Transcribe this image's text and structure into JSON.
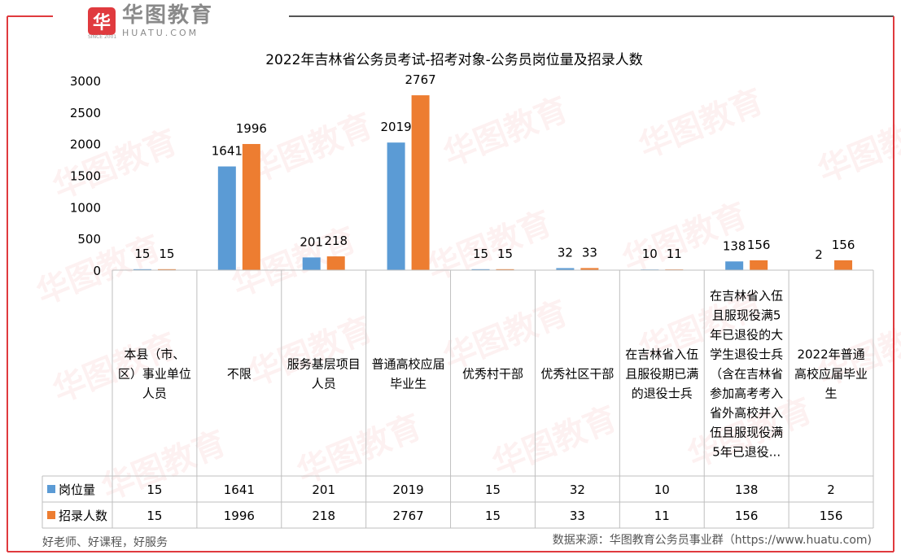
{
  "brand": {
    "logo_glyph": "华",
    "name": "华图教育",
    "domain": "HUATU.COM",
    "since": "SINCE 2001"
  },
  "watermark_text": "华图教育",
  "chart_data": {
    "type": "bar",
    "title": "2022年吉林省公务员考试-招考对象-公务员岗位量及招录人数",
    "categories": [
      [
        "本县（市、",
        "区）事业单位",
        "人员"
      ],
      [
        "不限"
      ],
      [
        "服务基层项目",
        "人员"
      ],
      [
        "普通高校应届",
        "毕业生"
      ],
      [
        "优秀村干部"
      ],
      [
        "优秀社区干部"
      ],
      [
        "在吉林省入伍",
        "且服役期已满",
        "的退役士兵"
      ],
      [
        "在吉林省入伍",
        "且服现役满5",
        "年已退役的大",
        "学生退役士兵",
        "（含在吉林省",
        "参加高考考入",
        "省外高校并入",
        "伍且服现役满",
        "5年已退役..."
      ],
      [
        "2022年普通",
        "高校应届毕业",
        "生"
      ]
    ],
    "series": [
      {
        "name": "岗位量",
        "color": "#5b9bd5",
        "values": [
          15,
          1641,
          201,
          2019,
          15,
          32,
          10,
          138,
          2
        ]
      },
      {
        "name": "招录人数",
        "color": "#ed7d31",
        "values": [
          15,
          1996,
          218,
          2767,
          15,
          33,
          11,
          156,
          156
        ]
      }
    ],
    "ylim": [
      0,
      3000
    ],
    "yticks": [
      "0",
      "500",
      "1000",
      "1500",
      "2000",
      "2500",
      "3000"
    ],
    "legend": "data-table",
    "grid": false
  },
  "footer": {
    "left": "好老师、好课程，好服务",
    "right": "数据来源：华图教育公务员事业群（https://www.huatu.com)"
  }
}
